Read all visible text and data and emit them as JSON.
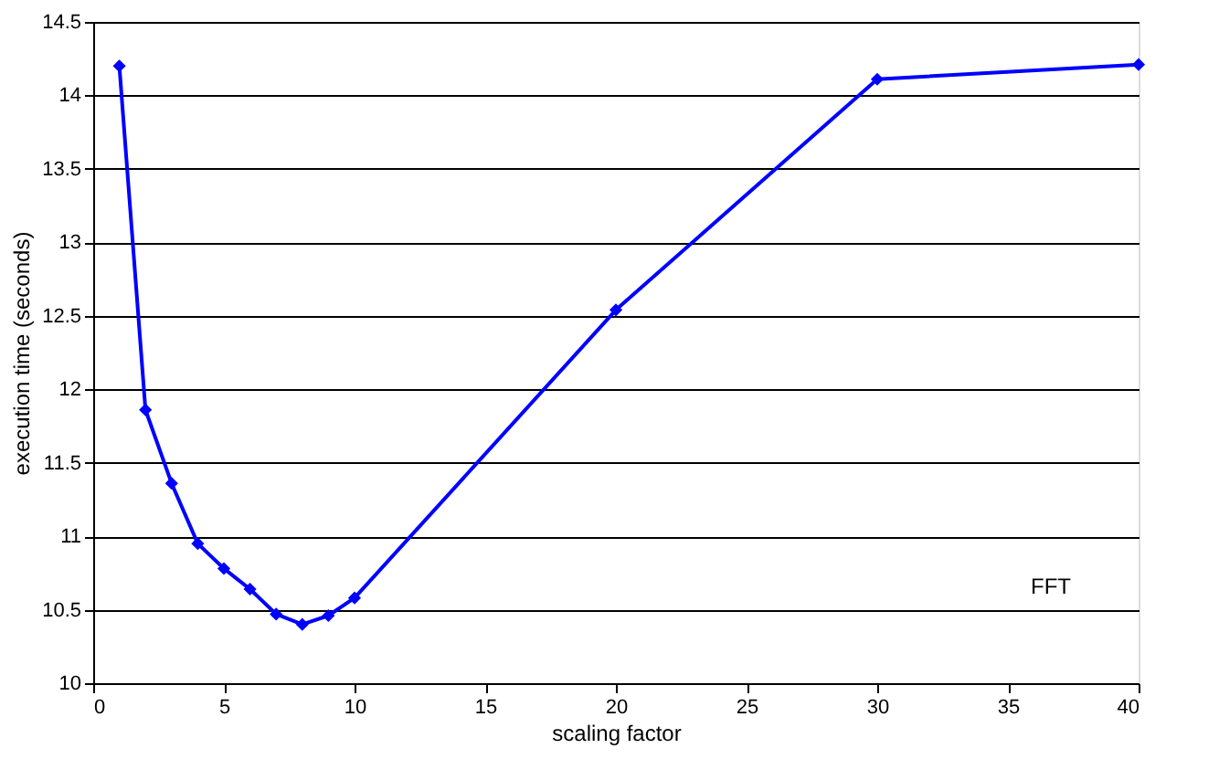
{
  "chart_data": {
    "type": "line",
    "xlabel": "scaling factor",
    "ylabel": "execution time (seconds)",
    "x": [
      1,
      2,
      3,
      4,
      5,
      6,
      7,
      8,
      9,
      10,
      20,
      30,
      40
    ],
    "series": [
      {
        "color": "#0000ff",
        "values": [
          14.2,
          11.86,
          11.36,
          10.95,
          10.78,
          10.64,
          10.47,
          10.4,
          10.46,
          10.58,
          12.54,
          14.11,
          14.21
        ]
      }
    ],
    "xlim": [
      0,
      40
    ],
    "xticks": [
      0,
      5,
      10,
      15,
      20,
      25,
      30,
      35,
      40
    ],
    "ylim": [
      10,
      14.5
    ],
    "yticks": [
      10,
      10.5,
      11,
      11.5,
      12,
      12.5,
      13,
      13.5,
      14,
      14.5
    ],
    "grid": "y",
    "marker": "diamond",
    "line_style": "solid",
    "annotations": [
      "FFT"
    ]
  }
}
